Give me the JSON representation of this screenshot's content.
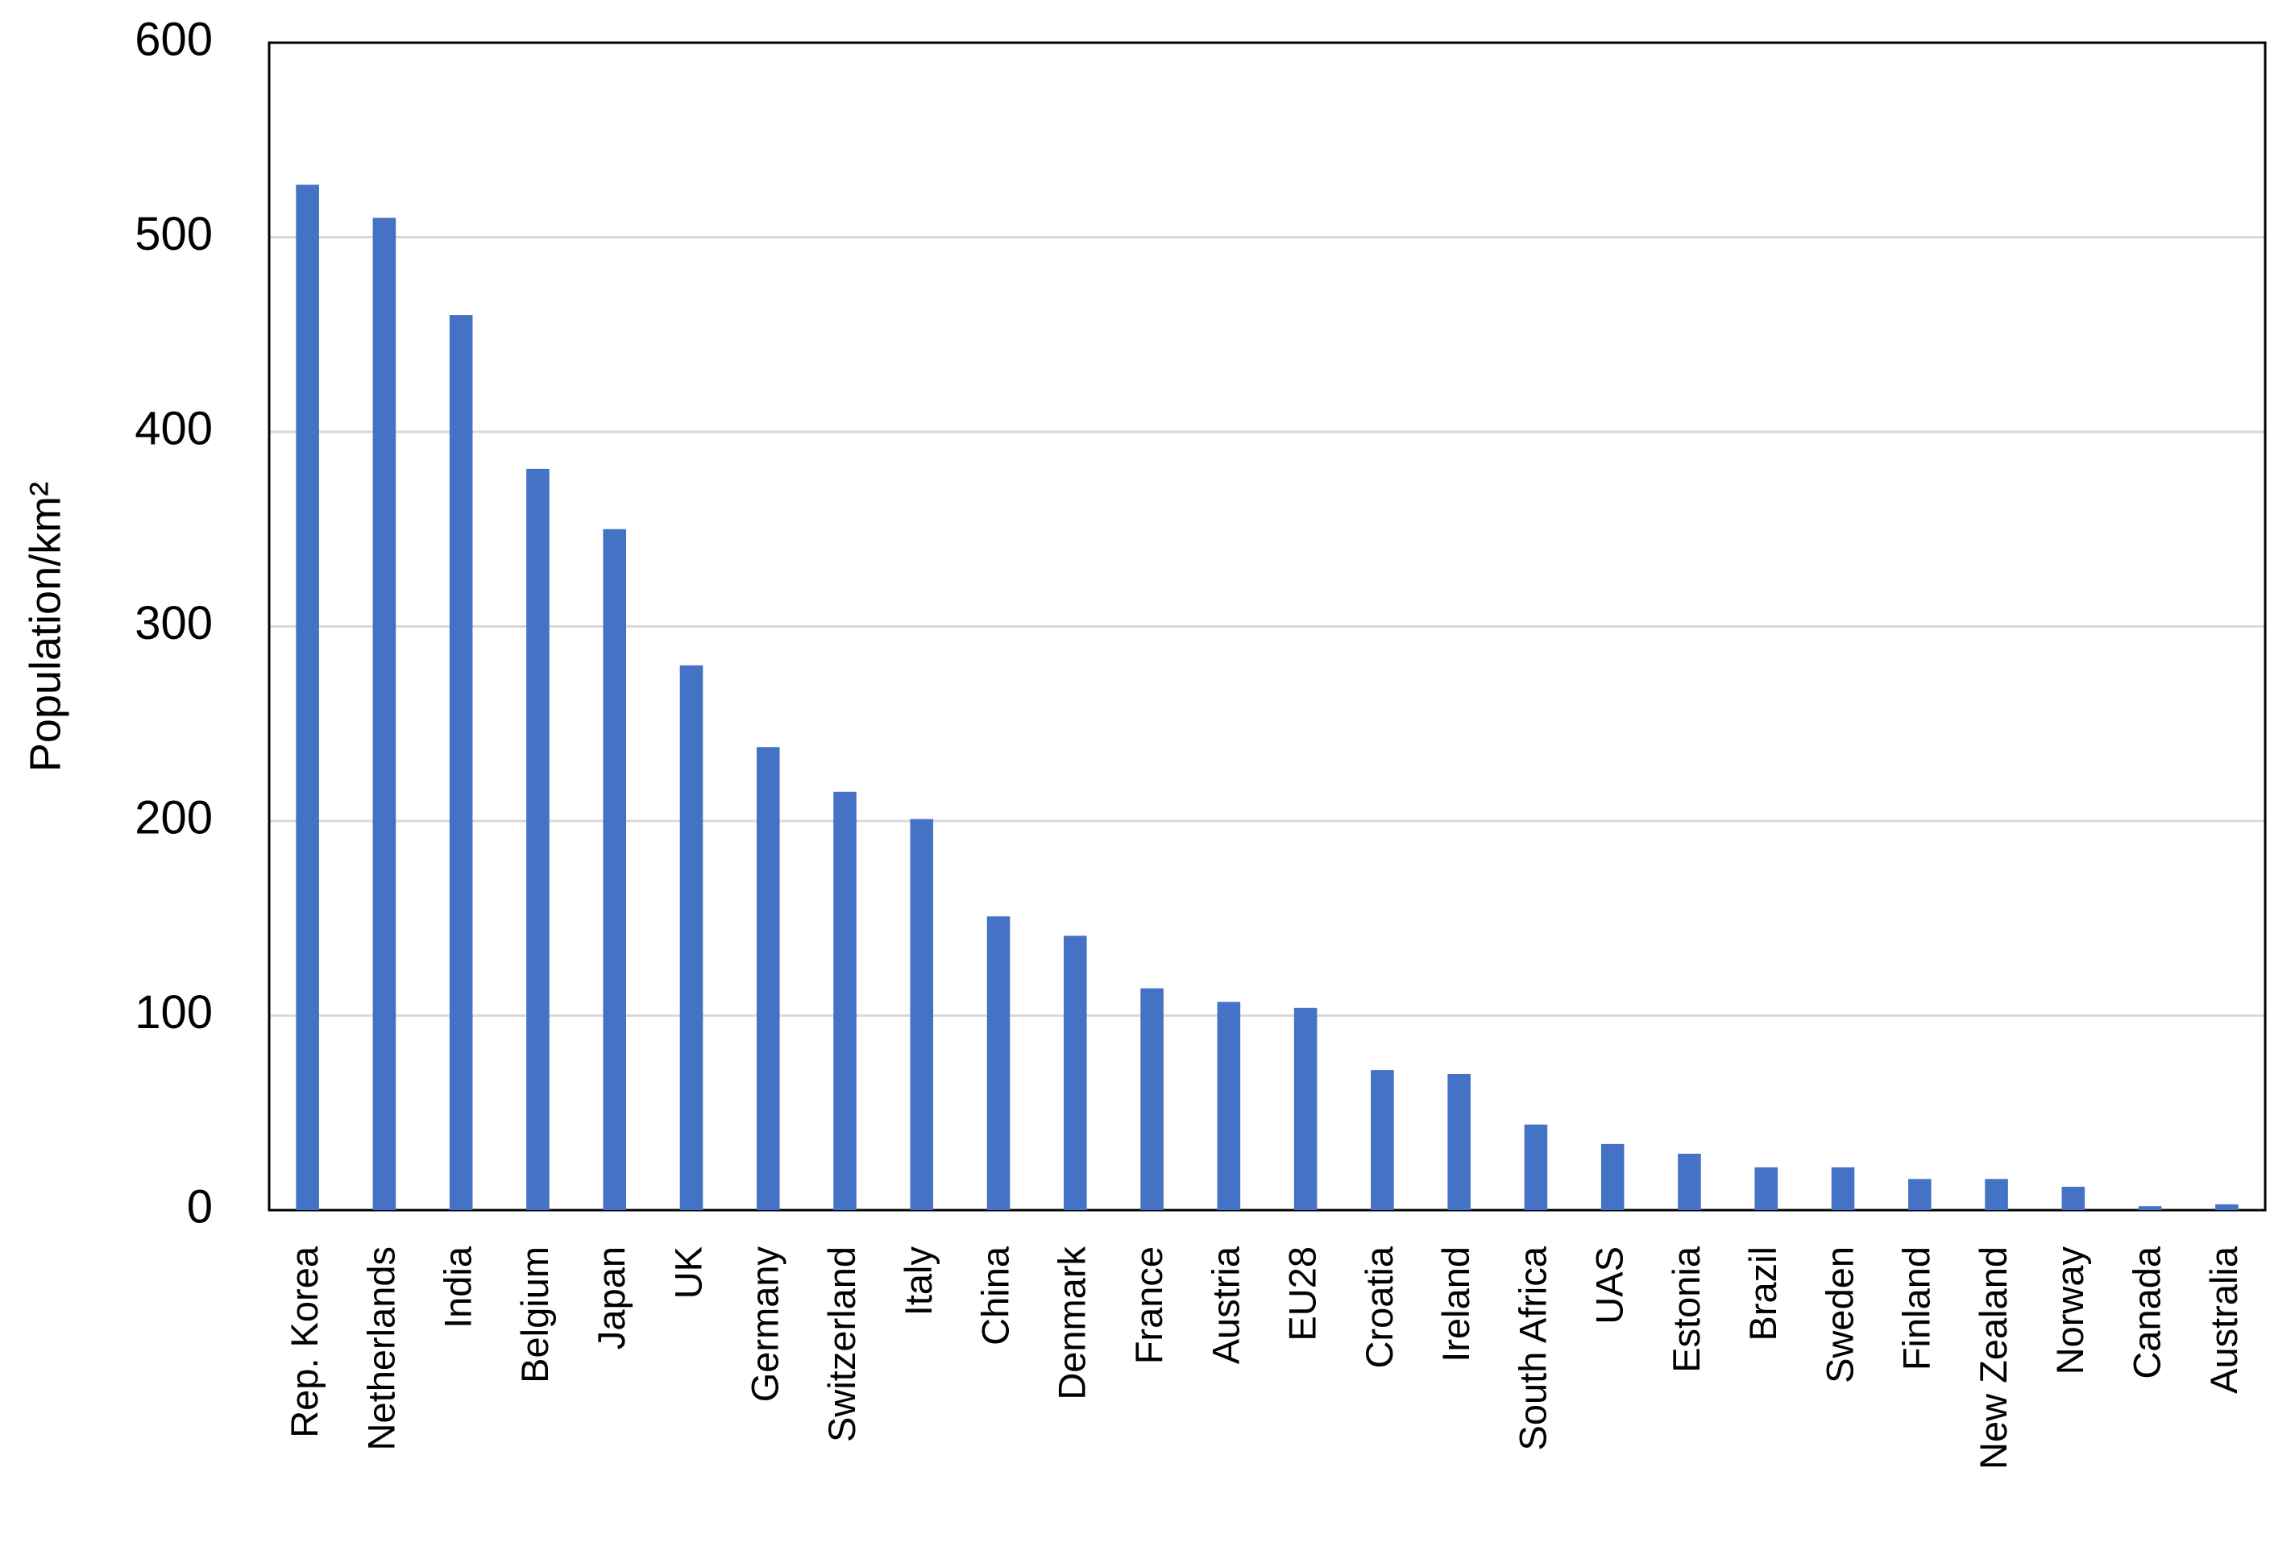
{
  "chart_data": {
    "type": "bar",
    "y_label": "Population/km²",
    "categories": [
      "Rep. Korea",
      "Netherlands",
      "India",
      "Belgium",
      "Japan",
      "UK",
      "Germany",
      "Switzerland",
      "Italy",
      "China",
      "Denmark",
      "France",
      "Austria",
      "EU28",
      "Croatia",
      "Ireland",
      "South Africa",
      "UAS",
      "Estonia",
      "Brazil",
      "Sweden",
      "Finland",
      "New Zealand",
      "Norway",
      "Canada",
      "Australia"
    ],
    "values": [
      527,
      510,
      460,
      381,
      350,
      280,
      238,
      215,
      201,
      151,
      141,
      114,
      107,
      104,
      72,
      70,
      44,
      34,
      29,
      22,
      22,
      16,
      16,
      12,
      2,
      3
    ],
    "color": "#4472c4",
    "ylim": [
      0,
      600
    ],
    "yticks": [
      0,
      100,
      200,
      300,
      400,
      500,
      600
    ],
    "grid": true
  }
}
